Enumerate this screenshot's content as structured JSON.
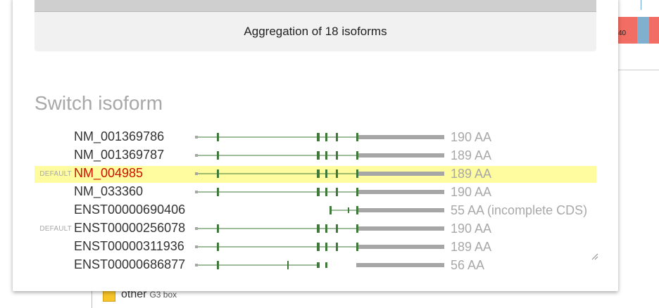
{
  "background": {
    "right_label": "40",
    "legend_label": "other",
    "legend_sub": "G3 box"
  },
  "modal": {
    "aggregation_label": "Aggregation of 18 isoforms",
    "section_title": "Switch isoform",
    "default_tag": "DEFAULT",
    "isoforms": [
      {
        "name": "NM_001369786",
        "aa": "190 AA",
        "default": false,
        "selected": false,
        "model": "full"
      },
      {
        "name": "NM_001369787",
        "aa": "189 AA",
        "default": false,
        "selected": false,
        "model": "full"
      },
      {
        "name": "NM_004985",
        "aa": "189 AA",
        "default": true,
        "selected": true,
        "model": "full"
      },
      {
        "name": "NM_033360",
        "aa": "190 AA",
        "default": false,
        "selected": false,
        "model": "full"
      },
      {
        "name": "ENST00000690406",
        "aa": "55 AA (incomplete CDS)",
        "default": false,
        "selected": false,
        "model": "short"
      },
      {
        "name": "ENST00000256078",
        "aa": "190 AA",
        "default": true,
        "selected": false,
        "model": "full"
      },
      {
        "name": "ENST00000311936",
        "aa": "189 AA",
        "default": false,
        "selected": false,
        "model": "full"
      },
      {
        "name": "ENST00000686877",
        "aa": "56 AA",
        "default": false,
        "selected": false,
        "model": "partial"
      }
    ]
  },
  "colors": {
    "exon": "#3f7a3a",
    "intron": "#3f7a3a",
    "utr": "#a6a6a6",
    "highlight": "#fefc9e",
    "selected_text": "#cc1100"
  }
}
